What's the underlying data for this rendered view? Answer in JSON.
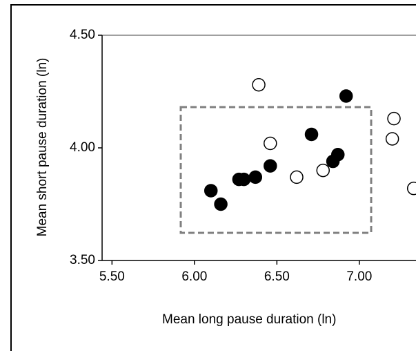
{
  "chart_data": {
    "type": "scatter",
    "x_label": "Mean long pause duration (ln)",
    "y_label": "Mean short pause duration (ln)",
    "xlim": [
      5.44,
      7.34
    ],
    "ylim": [
      3.5,
      4.5
    ],
    "xticks": [
      {
        "value": 5.5,
        "label": "5.50"
      },
      {
        "value": 6.0,
        "label": "6.00"
      },
      {
        "value": 6.5,
        "label": "6.50"
      },
      {
        "value": 7.0,
        "label": "7.00"
      }
    ],
    "yticks": [
      {
        "value": 3.5,
        "label": "3.50"
      },
      {
        "value": 4.0,
        "label": "4.00"
      },
      {
        "value": 4.5,
        "label": "4.50"
      }
    ],
    "series": [
      {
        "color": "#000000",
        "filled": true,
        "x": [
          6.1,
          6.16,
          6.27,
          6.3,
          6.37,
          6.46,
          6.71,
          6.84,
          6.87,
          6.92
        ],
        "values": [
          3.81,
          3.75,
          3.86,
          3.86,
          3.87,
          3.92,
          4.06,
          3.94,
          3.97,
          4.23
        ]
      },
      {
        "color": "#000000",
        "filled": false,
        "x": [
          6.39,
          6.46,
          6.62,
          6.78,
          7.2,
          7.21,
          7.33
        ],
        "values": [
          4.28,
          4.02,
          3.87,
          3.9,
          4.04,
          4.13,
          3.82
        ]
      }
    ]
  }
}
